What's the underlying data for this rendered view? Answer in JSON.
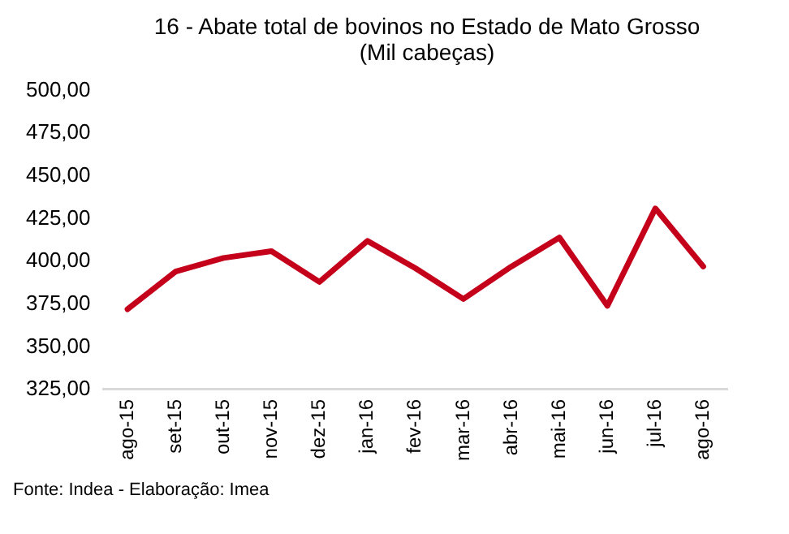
{
  "chart_data": {
    "type": "line",
    "title": "16 - Abate total de bovinos no Estado de Mato Grosso",
    "subtitle": "(Mil cabeças)",
    "categories": [
      "ago-15",
      "set-15",
      "out-15",
      "nov-15",
      "dez-15",
      "jan-16",
      "fev-16",
      "mar-16",
      "abr-16",
      "mai-16",
      "jun-16",
      "jul-16",
      "ago-16"
    ],
    "series": [
      {
        "color": "#c4001a",
        "values": [
          372,
          394,
          402,
          406,
          388,
          412,
          396,
          378,
          397,
          414,
          374,
          431,
          397
        ]
      }
    ],
    "ylim": [
      325,
      500
    ],
    "yticks": [
      {
        "value": 325,
        "label": "325,00"
      },
      {
        "value": 350,
        "label": "350,00"
      },
      {
        "value": 375,
        "label": "375,00"
      },
      {
        "value": 400,
        "label": "400,00"
      },
      {
        "value": 425,
        "label": "425,00"
      },
      {
        "value": 450,
        "label": "450,00"
      },
      {
        "value": 475,
        "label": "475,00"
      },
      {
        "value": 500,
        "label": "500,00"
      }
    ],
    "grid": false,
    "legend": false,
    "marker": "none",
    "line_style": "solid",
    "annotations": [
      "Fonte: Indea - Elaboração: Imea"
    ]
  }
}
